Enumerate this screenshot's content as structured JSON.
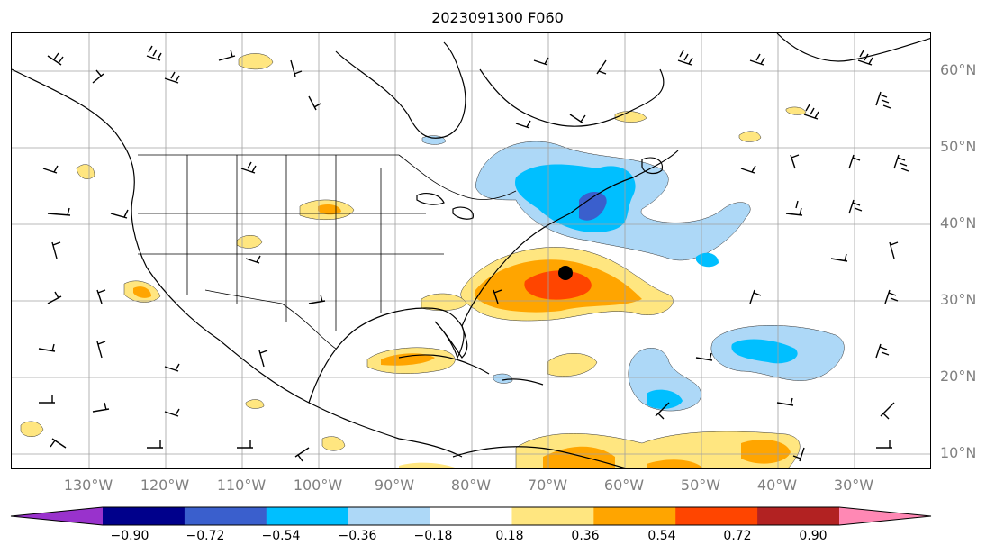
{
  "title": "2023091300 F060",
  "map": {
    "lat_labels": [
      "60°N",
      "50°N",
      "40°N",
      "30°N",
      "20°N",
      "10°N"
    ],
    "lon_labels": [
      "130°W",
      "120°W",
      "110°W",
      "100°W",
      "90°W",
      "80°W",
      "70°W",
      "60°W",
      "50°W",
      "40°W",
      "30°W"
    ],
    "storm_marker": {
      "lat": 33.8,
      "lon": -68.5
    }
  },
  "colorbar": {
    "ticks": [
      "−0.90",
      "−0.72",
      "−0.54",
      "−0.36",
      "−0.18",
      "0.18",
      "0.36",
      "0.54",
      "0.72",
      "0.90"
    ],
    "colors": [
      "#9932cc",
      "#00008b",
      "#3a5fcd",
      "#00bfff",
      "#add8f7",
      "#ffffff",
      "#ffe680",
      "#ffa500",
      "#ff4500",
      "#b22222",
      "#ff88b4"
    ]
  }
}
